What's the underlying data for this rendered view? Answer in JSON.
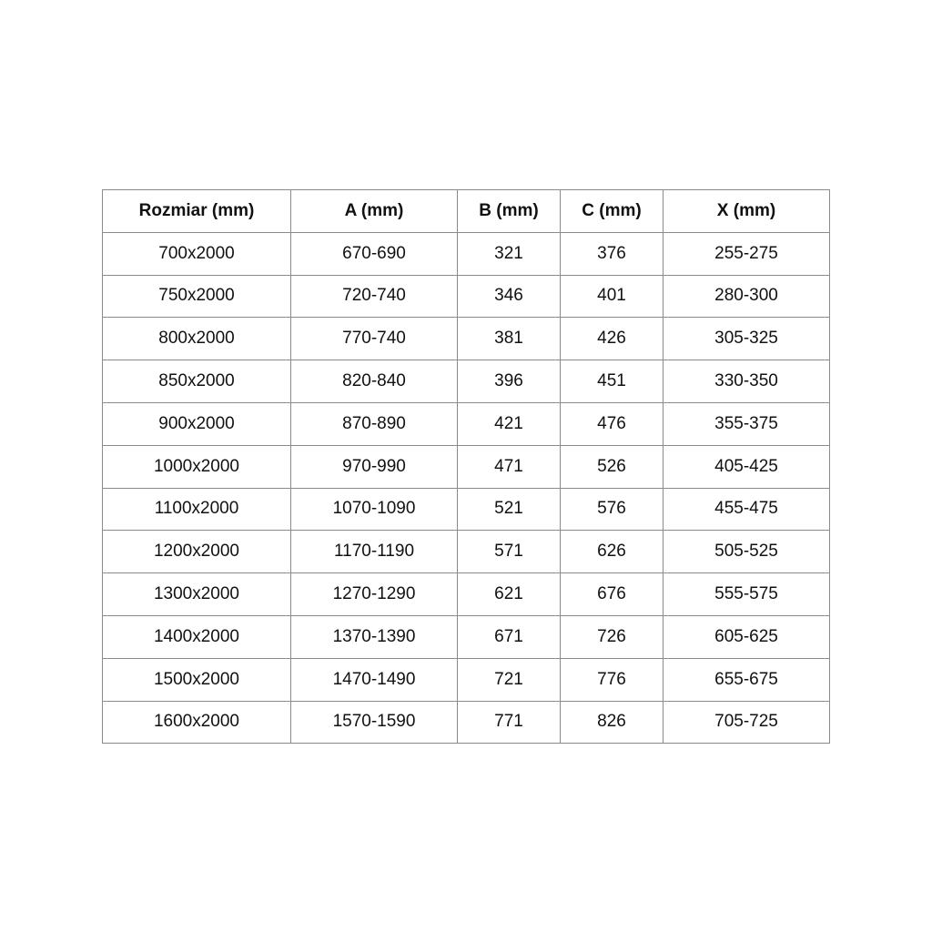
{
  "table": {
    "headers": [
      "Rozmiar (mm)",
      "A (mm)",
      "B (mm)",
      "C (mm)",
      "X (mm)"
    ],
    "rows": [
      [
        "700x2000",
        "670-690",
        "321",
        "376",
        "255-275"
      ],
      [
        "750x2000",
        "720-740",
        "346",
        "401",
        "280-300"
      ],
      [
        "800x2000",
        "770-740",
        "381",
        "426",
        "305-325"
      ],
      [
        "850x2000",
        "820-840",
        "396",
        "451",
        "330-350"
      ],
      [
        "900x2000",
        "870-890",
        "421",
        "476",
        "355-375"
      ],
      [
        "1000x2000",
        "970-990",
        "471",
        "526",
        "405-425"
      ],
      [
        "1100x2000",
        "1070-1090",
        "521",
        "576",
        "455-475"
      ],
      [
        "1200x2000",
        "1170-1190",
        "571",
        "626",
        "505-525"
      ],
      [
        "1300x2000",
        "1270-1290",
        "621",
        "676",
        "555-575"
      ],
      [
        "1400x2000",
        "1370-1390",
        "671",
        "726",
        "605-625"
      ],
      [
        "1500x2000",
        "1470-1490",
        "721",
        "776",
        "655-675"
      ],
      [
        "1600x2000",
        "1570-1590",
        "771",
        "826",
        "705-725"
      ]
    ]
  }
}
